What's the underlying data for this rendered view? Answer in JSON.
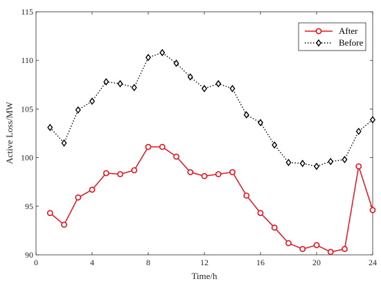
{
  "chart_data": {
    "type": "line",
    "title": "",
    "xlabel": "Time/h",
    "ylabel": "Active Loss/MW",
    "xlim": [
      0,
      24
    ],
    "ylim": [
      90,
      115
    ],
    "x_ticks": [
      0,
      4,
      8,
      12,
      16,
      20,
      24
    ],
    "y_ticks": [
      90,
      95,
      100,
      105,
      110,
      115
    ],
    "x_tick_labels": [
      "0",
      "4",
      "8",
      "12",
      "16",
      "20",
      "24"
    ],
    "y_tick_labels": [
      "90",
      "95",
      "100",
      "105",
      "110",
      "115"
    ],
    "grid": false,
    "legend_position": "top-right",
    "x": [
      1,
      2,
      3,
      4,
      5,
      6,
      7,
      8,
      9,
      10,
      11,
      12,
      13,
      14,
      15,
      16,
      17,
      18,
      19,
      20,
      21,
      22,
      23,
      24
    ],
    "series": [
      {
        "name": "After",
        "color": "#e8121c",
        "line_style": "solid",
        "marker": "circle",
        "values": [
          94.3,
          93.1,
          95.9,
          96.7,
          98.4,
          98.3,
          98.7,
          101.1,
          101.1,
          100.1,
          98.5,
          98.1,
          98.3,
          98.5,
          96.1,
          94.3,
          92.8,
          91.2,
          90.6,
          91.0,
          90.3,
          90.6,
          99.1,
          94.6
        ]
      },
      {
        "name": "Before",
        "color": "#000000",
        "line_style": "dotted",
        "marker": "diamond",
        "values": [
          103.1,
          101.5,
          104.9,
          105.8,
          107.8,
          107.6,
          107.2,
          110.3,
          110.8,
          109.7,
          108.3,
          107.1,
          107.6,
          107.1,
          104.4,
          103.6,
          101.3,
          99.5,
          99.4,
          99.1,
          99.6,
          99.8,
          102.7,
          103.9
        ]
      }
    ]
  }
}
